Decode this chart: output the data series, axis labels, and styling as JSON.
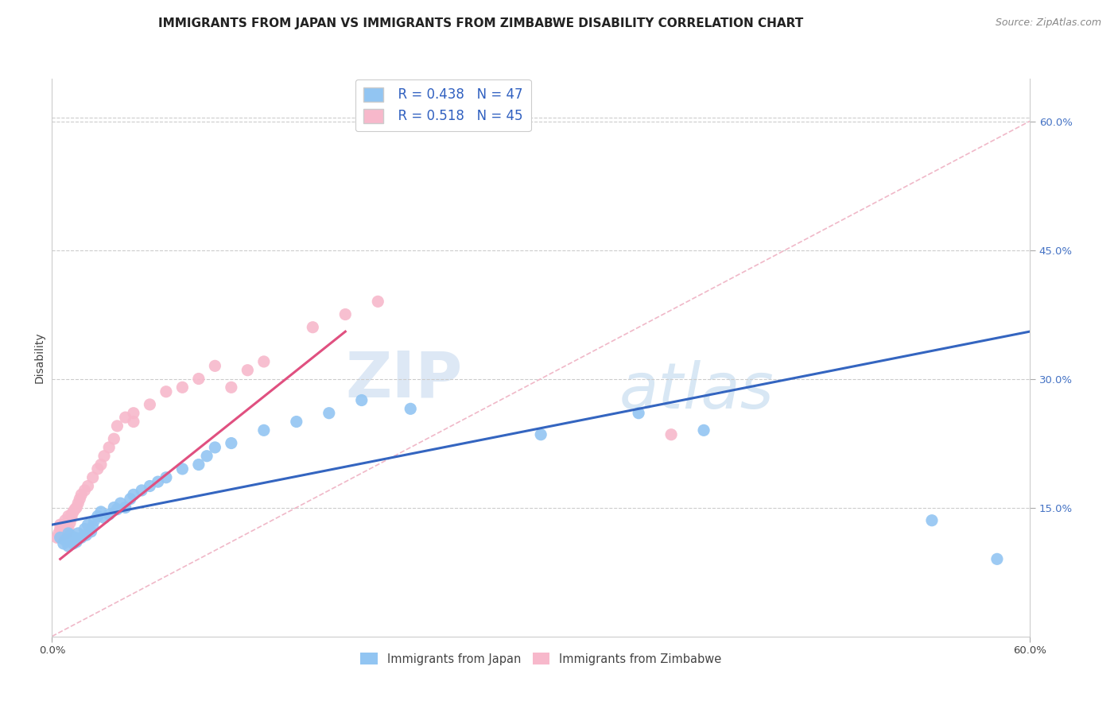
{
  "title": "IMMIGRANTS FROM JAPAN VS IMMIGRANTS FROM ZIMBABWE DISABILITY CORRELATION CHART",
  "source": "Source: ZipAtlas.com",
  "ylabel": "Disability",
  "xlim": [
    0.0,
    0.6
  ],
  "ylim": [
    0.0,
    0.65
  ],
  "ytick_values": [
    0.15,
    0.3,
    0.45,
    0.6
  ],
  "legend_r1": "R = 0.438",
  "legend_n1": "N = 47",
  "legend_r2": "R = 0.518",
  "legend_n2": "N = 45",
  "japan_color": "#92C5F2",
  "zimbabwe_color": "#F7B8CB",
  "japan_line_color": "#3465C0",
  "zimbabwe_line_color": "#E05080",
  "diagonal_color": "#d0d0d0",
  "background_color": "#ffffff",
  "japan_line_x": [
    0.0,
    0.6
  ],
  "japan_line_y": [
    0.13,
    0.355
  ],
  "zimbabwe_line_x": [
    0.005,
    0.18
  ],
  "zimbabwe_line_y": [
    0.09,
    0.355
  ],
  "japan_scatter_x": [
    0.005,
    0.007,
    0.008,
    0.01,
    0.01,
    0.011,
    0.012,
    0.013,
    0.014,
    0.015,
    0.016,
    0.018,
    0.02,
    0.021,
    0.022,
    0.024,
    0.025,
    0.026,
    0.028,
    0.03,
    0.032,
    0.035,
    0.038,
    0.04,
    0.042,
    0.045,
    0.048,
    0.05,
    0.055,
    0.06,
    0.065,
    0.07,
    0.08,
    0.09,
    0.095,
    0.1,
    0.11,
    0.13,
    0.15,
    0.17,
    0.19,
    0.22,
    0.3,
    0.36,
    0.4,
    0.54,
    0.58
  ],
  "japan_scatter_y": [
    0.115,
    0.108,
    0.112,
    0.12,
    0.105,
    0.118,
    0.113,
    0.108,
    0.115,
    0.11,
    0.12,
    0.115,
    0.125,
    0.118,
    0.13,
    0.122,
    0.128,
    0.135,
    0.14,
    0.145,
    0.138,
    0.142,
    0.15,
    0.148,
    0.155,
    0.15,
    0.16,
    0.165,
    0.17,
    0.175,
    0.18,
    0.185,
    0.195,
    0.2,
    0.21,
    0.22,
    0.225,
    0.24,
    0.25,
    0.26,
    0.275,
    0.265,
    0.235,
    0.26,
    0.24,
    0.135,
    0.09
  ],
  "zimbabwe_scatter_x": [
    0.003,
    0.004,
    0.005,
    0.005,
    0.006,
    0.007,
    0.007,
    0.008,
    0.008,
    0.009,
    0.01,
    0.01,
    0.011,
    0.012,
    0.012,
    0.013,
    0.014,
    0.015,
    0.016,
    0.017,
    0.018,
    0.02,
    0.022,
    0.025,
    0.028,
    0.03,
    0.032,
    0.035,
    0.038,
    0.04,
    0.045,
    0.05,
    0.06,
    0.07,
    0.08,
    0.09,
    0.1,
    0.11,
    0.12,
    0.13,
    0.16,
    0.18,
    0.2,
    0.38,
    0.05
  ],
  "zimbabwe_scatter_y": [
    0.115,
    0.12,
    0.125,
    0.13,
    0.118,
    0.122,
    0.128,
    0.13,
    0.135,
    0.12,
    0.125,
    0.14,
    0.132,
    0.138,
    0.142,
    0.145,
    0.148,
    0.15,
    0.155,
    0.16,
    0.165,
    0.17,
    0.175,
    0.185,
    0.195,
    0.2,
    0.21,
    0.22,
    0.23,
    0.245,
    0.255,
    0.26,
    0.27,
    0.285,
    0.29,
    0.3,
    0.315,
    0.29,
    0.31,
    0.32,
    0.36,
    0.375,
    0.39,
    0.235,
    0.25
  ],
  "title_fontsize": 11,
  "axis_label_fontsize": 10,
  "tick_fontsize": 9.5,
  "legend_fontsize": 12
}
